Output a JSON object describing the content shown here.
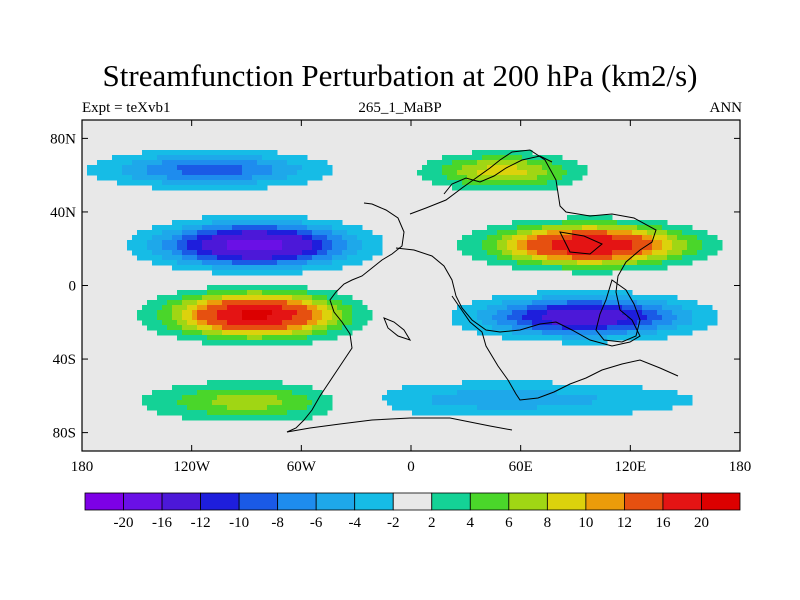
{
  "chart_data": {
    "type": "heatmap",
    "title": "Streamfunction Perturbation at 200 hPa (km2/s)",
    "subtitle_left": "Expt = teXvb1",
    "subtitle_center": "265_1_MaBP",
    "subtitle_right": "ANN",
    "xlim": [
      -180,
      180
    ],
    "ylim": [
      -90,
      90
    ],
    "x_ticks": [
      {
        "value": -180,
        "label": "180"
      },
      {
        "value": -120,
        "label": "120W"
      },
      {
        "value": -60,
        "label": "60W"
      },
      {
        "value": 0,
        "label": "0"
      },
      {
        "value": 60,
        "label": "60E"
      },
      {
        "value": 120,
        "label": "120E"
      },
      {
        "value": 180,
        "label": "180"
      }
    ],
    "y_ticks": [
      {
        "value": 80,
        "label": "80N"
      },
      {
        "value": 40,
        "label": "40N"
      },
      {
        "value": 0,
        "label": "0"
      },
      {
        "value": -40,
        "label": "40S"
      },
      {
        "value": -80,
        "label": "80S"
      }
    ],
    "colorbar": {
      "labels": [
        "-20",
        "-16",
        "-12",
        "-10",
        "-8",
        "-6",
        "-4",
        "-2",
        "2",
        "4",
        "6",
        "8",
        "10",
        "12",
        "16",
        "20"
      ],
      "colors": [
        "#7d00e6",
        "#6a10e6",
        "#4c18d8",
        "#1e1edc",
        "#1a5ae6",
        "#1e8cee",
        "#1ea8ea",
        "#16bce6",
        "#e8e8e8",
        "#14d296",
        "#4ad62a",
        "#a0d614",
        "#dcd20c",
        "#ec9c0a",
        "#e65010",
        "#e41414",
        "#dc0000"
      ]
    },
    "features": [
      {
        "name": "NH Pacific low",
        "lon": -85,
        "lat": 22,
        "peak": -18,
        "spread_lon": 48,
        "spread_lat": 11
      },
      {
        "name": "SH Pacific high",
        "lon": -85,
        "lat": -16,
        "peak": 21,
        "spread_lon": 42,
        "spread_lat": 11
      },
      {
        "name": "Asian high",
        "lon": 98,
        "lat": 22,
        "peak": 20,
        "spread_lon": 48,
        "spread_lat": 10
      },
      {
        "name": "Indian Ocean low",
        "lon": 95,
        "lat": -17,
        "peak": -15,
        "spread_lon": 52,
        "spread_lat": 10
      },
      {
        "name": "Arctic high",
        "lon": 50,
        "lat": 62,
        "peak": 9,
        "spread_lon": 38,
        "spread_lat": 9
      },
      {
        "name": "North Pacific low",
        "lon": -110,
        "lat": 63,
        "peak": -9,
        "spread_lon": 55,
        "spread_lat": 9
      },
      {
        "name": "Southern high",
        "lon": -85,
        "lat": -63,
        "peak": 8,
        "spread_lon": 55,
        "spread_lat": 10
      },
      {
        "name": "Southern Ocean low",
        "lon": 50,
        "lat": -62,
        "peak": -5,
        "spread_lon": 110,
        "spread_lat": 10
      }
    ]
  }
}
